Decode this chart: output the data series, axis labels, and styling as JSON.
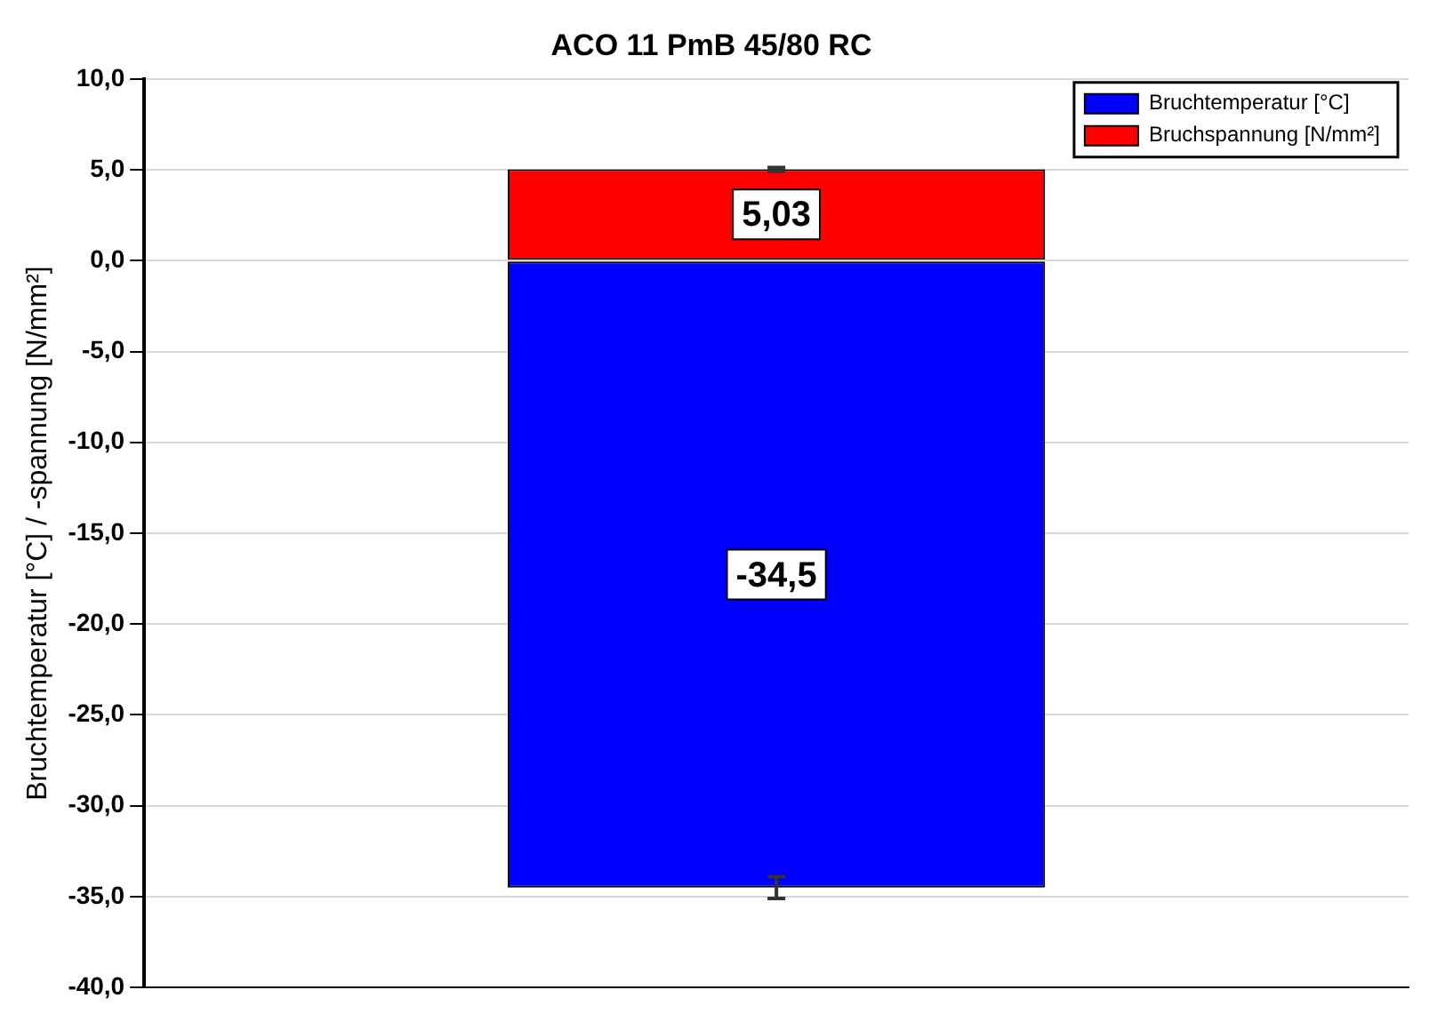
{
  "chart_data": {
    "type": "bar",
    "title": "ACO 11 PmB 45/80 RC",
    "ylabel": "Bruchtemperatur [°C] / -spannung [N/mm²]",
    "categories": [
      null
    ],
    "stacked": true,
    "series": [
      {
        "name": "Bruchtemperatur [°C]",
        "color": "#0000ff",
        "values": [
          -34.5
        ],
        "errors": [
          0.6
        ],
        "value_labels": [
          "-34,5"
        ]
      },
      {
        "name": "Bruchspannung [N/mm²]",
        "color": "#ff0000",
        "values": [
          5.03
        ],
        "errors": [
          0.1
        ],
        "value_labels": [
          "5,03"
        ]
      }
    ],
    "ylim": [
      -40,
      10
    ],
    "yticks": [
      {
        "value": -40,
        "label": "-40,0"
      },
      {
        "value": -35,
        "label": "-35,0"
      },
      {
        "value": -30,
        "label": "-30,0"
      },
      {
        "value": -25,
        "label": "-25,0"
      },
      {
        "value": -20,
        "label": "-20,0"
      },
      {
        "value": -15,
        "label": "-15,0"
      },
      {
        "value": -10,
        "label": "-10,0"
      },
      {
        "value": -5,
        "label": "-5,0"
      },
      {
        "value": 0,
        "label": "0,0"
      },
      {
        "value": 5,
        "label": "5,0"
      },
      {
        "value": 10,
        "label": "10,0"
      }
    ],
    "grid": "y",
    "legend": "top right"
  }
}
